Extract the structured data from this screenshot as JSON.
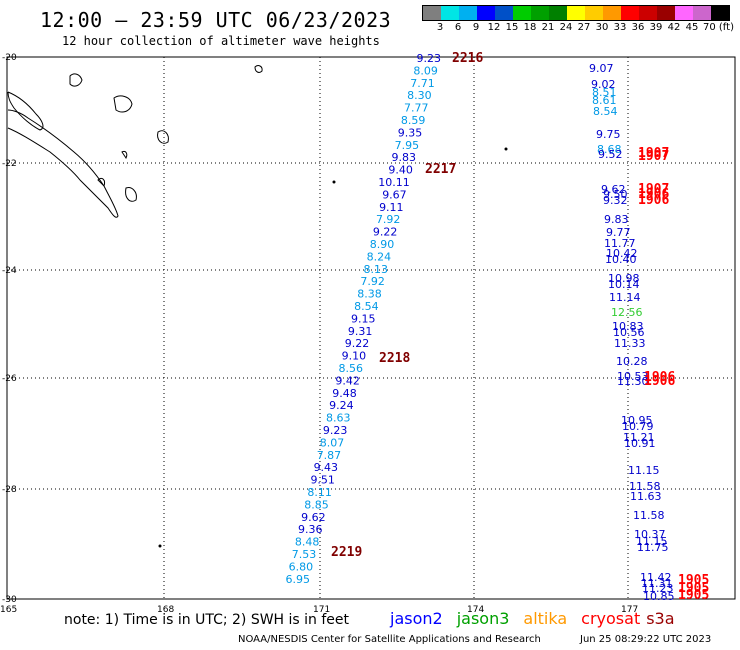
{
  "title": "12:00 – 23:59 UTC 06/23/2023",
  "subtitle": "12 hour collection of altimeter wave heights",
  "legend": {
    "labels": [
      "3",
      "6",
      "9",
      "12",
      "15",
      "18",
      "21",
      "24",
      "27",
      "30",
      "33",
      "36",
      "39",
      "42",
      "45",
      "70 (ft)"
    ],
    "colors": [
      "#7f7f7f",
      "#00e5e5",
      "#00b0f0",
      "#0000ff",
      "#0050c8",
      "#00cc00",
      "#00a000",
      "#008000",
      "#ffff00",
      "#ffcc00",
      "#ff9900",
      "#ff0000",
      "#cc0000",
      "#990000",
      "#ff66ff",
      "#cc66cc",
      "#000000"
    ]
  },
  "axes": {
    "lon_labels": [
      "165",
      "168",
      "171",
      "174",
      "177"
    ],
    "lat_labels": [
      "-20",
      "-22",
      "-24",
      "-26",
      "-28",
      "-30"
    ]
  },
  "track1": {
    "values": [
      {
        "v": "9.23",
        "c": "#0000cc"
      },
      {
        "v": "8.09",
        "c": "#0099e6"
      },
      {
        "v": "7.71",
        "c": "#0099e6"
      },
      {
        "v": "8.30",
        "c": "#0099e6"
      },
      {
        "v": "7.77",
        "c": "#0099e6"
      },
      {
        "v": "8.59",
        "c": "#0099e6"
      },
      {
        "v": "9.35",
        "c": "#0000cc"
      },
      {
        "v": "7.95",
        "c": "#0099e6"
      },
      {
        "v": "9.83",
        "c": "#0000cc"
      },
      {
        "v": "9.40",
        "c": "#0000cc"
      },
      {
        "v": "10.11",
        "c": "#0000cc"
      },
      {
        "v": "9.67",
        "c": "#0000cc"
      },
      {
        "v": "9.11",
        "c": "#0000cc"
      },
      {
        "v": "7.92",
        "c": "#0099e6"
      },
      {
        "v": "9.22",
        "c": "#0000cc"
      },
      {
        "v": "8.90",
        "c": "#0099e6"
      },
      {
        "v": "8.24",
        "c": "#0099e6"
      },
      {
        "v": "8.13",
        "c": "#0099e6"
      },
      {
        "v": "7.92",
        "c": "#0099e6"
      },
      {
        "v": "8.38",
        "c": "#0099e6"
      },
      {
        "v": "8.54",
        "c": "#0099e6"
      },
      {
        "v": "9.15",
        "c": "#0000cc"
      },
      {
        "v": "9.31",
        "c": "#0000cc"
      },
      {
        "v": "9.22",
        "c": "#0000cc"
      },
      {
        "v": "9.10",
        "c": "#0000cc"
      },
      {
        "v": "8.56",
        "c": "#0099e6"
      },
      {
        "v": "9.42",
        "c": "#0000cc"
      },
      {
        "v": "9.48",
        "c": "#0000cc"
      },
      {
        "v": "9.24",
        "c": "#0000cc"
      },
      {
        "v": "8.63",
        "c": "#0099e6"
      },
      {
        "v": "9.23",
        "c": "#0000cc"
      },
      {
        "v": "8.07",
        "c": "#0099e6"
      },
      {
        "v": "7.87",
        "c": "#0099e6"
      },
      {
        "v": "9.43",
        "c": "#0000cc"
      },
      {
        "v": "9.51",
        "c": "#0000cc"
      },
      {
        "v": "8.11",
        "c": "#0099e6"
      },
      {
        "v": "8.85",
        "c": "#0099e6"
      },
      {
        "v": "9.62",
        "c": "#0000cc"
      },
      {
        "v": "9.36",
        "c": "#0000cc"
      },
      {
        "v": "8.48",
        "c": "#0099e6"
      },
      {
        "v": "7.53",
        "c": "#0099e6"
      },
      {
        "v": "6.80",
        "c": "#0099e6"
      },
      {
        "v": "6.95",
        "c": "#0099e6"
      }
    ],
    "pass_times": [
      "2216",
      "2217",
      "2218",
      "2219"
    ]
  },
  "track2": {
    "values": [
      {
        "v": "9.07",
        "c": "#0000cc"
      },
      {
        "v": "9.02",
        "c": "#0000cc"
      },
      {
        "v": "8.51",
        "c": "#0099e6"
      },
      {
        "v": "8.61",
        "c": "#0099e6"
      },
      {
        "v": "8.54",
        "c": "#0099e6"
      },
      {
        "v": "9.75",
        "c": "#0000cc"
      },
      {
        "v": "8.68",
        "c": "#0099e6"
      },
      {
        "v": "9.52",
        "c": "#0000cc"
      },
      {
        "v": "9.62",
        "c": "#0000cc"
      },
      {
        "v": "9.50",
        "c": "#0000cc"
      },
      {
        "v": "9.32",
        "c": "#0000cc"
      },
      {
        "v": "9.83",
        "c": "#0000cc"
      },
      {
        "v": "9.77",
        "c": "#0000cc"
      },
      {
        "v": "11.77",
        "c": "#0000cc"
      },
      {
        "v": "10.42",
        "c": "#0000cc"
      },
      {
        "v": "10.40",
        "c": "#0000cc"
      },
      {
        "v": "10.98",
        "c": "#0000cc"
      },
      {
        "v": "10.14",
        "c": "#0000cc"
      },
      {
        "v": "11.14",
        "c": "#0000cc"
      },
      {
        "v": "12.56",
        "c": "#33cc33"
      },
      {
        "v": "10.83",
        "c": "#0000cc"
      },
      {
        "v": "10.56",
        "c": "#0000cc"
      },
      {
        "v": "11.33",
        "c": "#0000cc"
      },
      {
        "v": "10.28",
        "c": "#0000cc"
      },
      {
        "v": "10.53",
        "c": "#0000cc"
      },
      {
        "v": "11.30",
        "c": "#0000cc"
      },
      {
        "v": "10.95",
        "c": "#0000cc"
      },
      {
        "v": "10.79",
        "c": "#0000cc"
      },
      {
        "v": "11.21",
        "c": "#0000cc"
      },
      {
        "v": "10.91",
        "c": "#0000cc"
      },
      {
        "v": "11.15",
        "c": "#0000cc"
      },
      {
        "v": "11.58",
        "c": "#0000cc"
      },
      {
        "v": "11.63",
        "c": "#0000cc"
      },
      {
        "v": "11.58",
        "c": "#0000cc"
      },
      {
        "v": "10.37",
        "c": "#0000cc"
      },
      {
        "v": "11.15",
        "c": "#0000cc"
      },
      {
        "v": "11.75",
        "c": "#0000cc"
      },
      {
        "v": "11.42",
        "c": "#0000cc"
      },
      {
        "v": "11.31",
        "c": "#0000cc"
      },
      {
        "v": "11.23",
        "c": "#0000cc"
      },
      {
        "v": "10.85",
        "c": "#0000cc"
      }
    ],
    "pass_times": [
      "1907",
      "1907",
      "1907",
      "1906",
      "1906",
      "1906",
      "1906",
      "1905",
      "1905",
      "1905"
    ]
  },
  "note": "note: 1) Time is in UTC; 2) SWH is in feet",
  "satellites": [
    {
      "name": "jason2",
      "color": "#0000ff"
    },
    {
      "name": "jason3",
      "color": "#00a000"
    },
    {
      "name": "altika",
      "color": "#ff9900"
    },
    {
      "name": "cryosat",
      "color": "#ff0000"
    },
    {
      "name": "s3a",
      "color": "#990000"
    }
  ],
  "credit": "NOAA/NESDIS Center for Satellite Applications and Research",
  "timestamp": "Jun 25 08:29:22 UTC 2023"
}
